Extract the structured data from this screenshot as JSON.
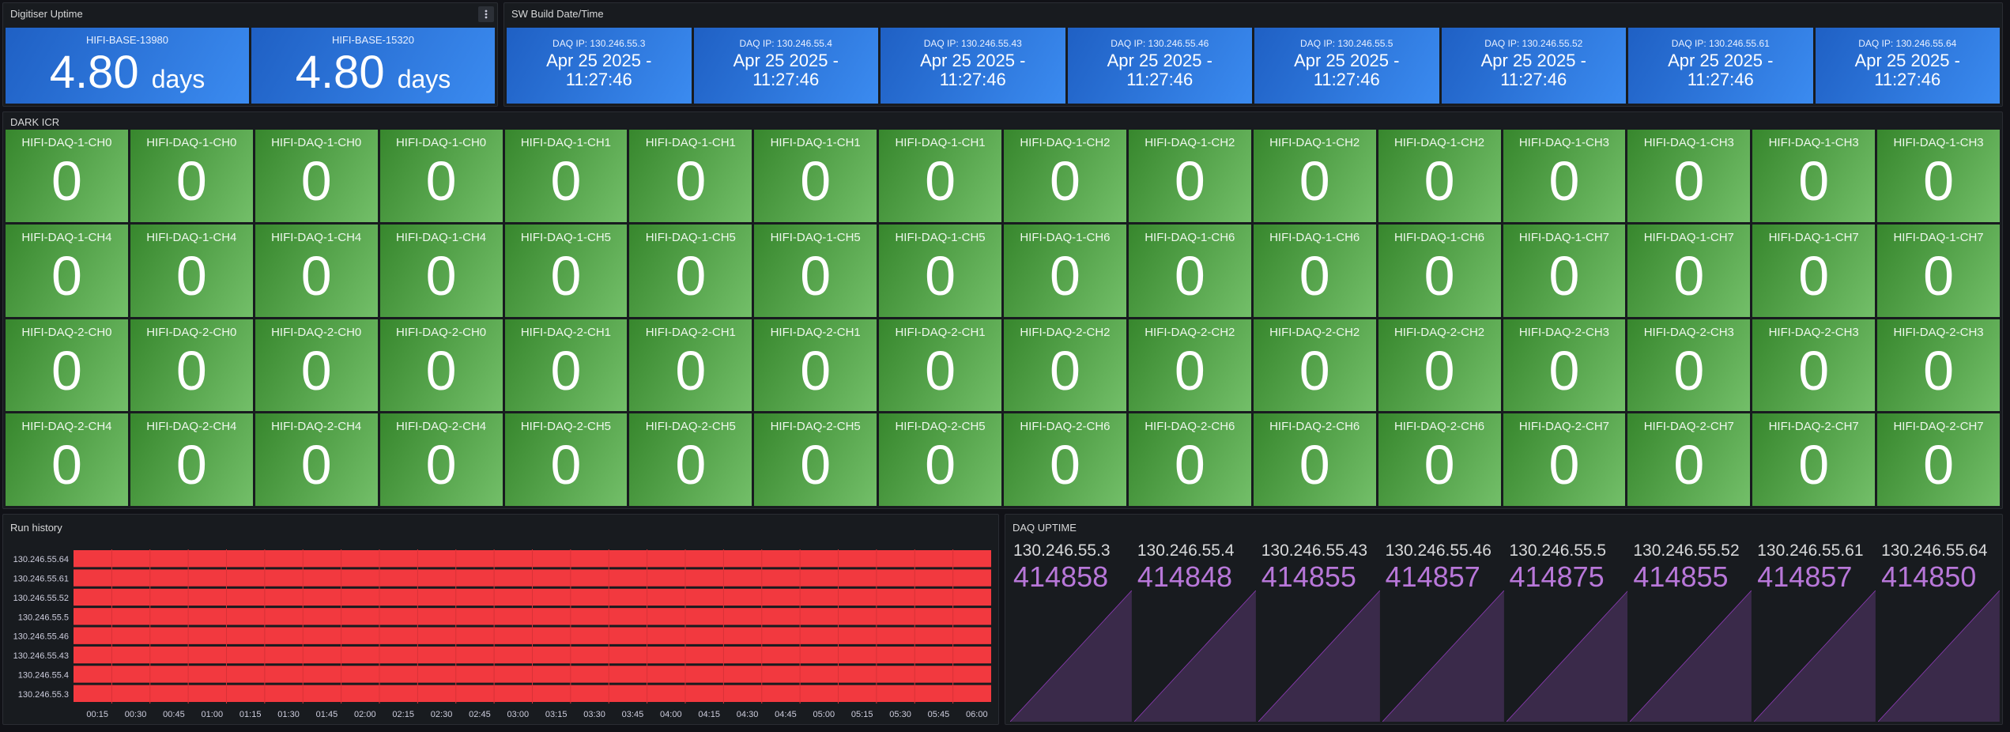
{
  "colors": {
    "background": "#111217",
    "panel": "#181b1f",
    "blue_start": "#1f60c4",
    "blue_end": "#3b8bf0",
    "green_start": "#37872d",
    "green_end": "#73bf69",
    "red_bar": "#f2393f",
    "purple_text": "#b877d9",
    "purple_fill": "#3a2a4a"
  },
  "digitiser_uptime": {
    "title": "Digitiser Uptime",
    "menu_icon": "kebab-menu-icon",
    "tiles": [
      {
        "label": "HIFI-BASE-13980",
        "value": "4.80",
        "unit": "days"
      },
      {
        "label": "HIFI-BASE-15320",
        "value": "4.80",
        "unit": "days"
      }
    ]
  },
  "sw_build": {
    "title": "SW Build Date/Time",
    "tiles": [
      {
        "label": "DAQ IP: 130.246.55.3",
        "line1": "Apr 25 2025 -",
        "line2": "11:27:46"
      },
      {
        "label": "DAQ IP: 130.246.55.4",
        "line1": "Apr 25 2025 -",
        "line2": "11:27:46"
      },
      {
        "label": "DAQ IP: 130.246.55.43",
        "line1": "Apr 25 2025 -",
        "line2": "11:27:46"
      },
      {
        "label": "DAQ IP: 130.246.55.46",
        "line1": "Apr 25 2025 -",
        "line2": "11:27:46"
      },
      {
        "label": "DAQ IP: 130.246.55.5",
        "line1": "Apr 25 2025 -",
        "line2": "11:27:46"
      },
      {
        "label": "DAQ IP: 130.246.55.52",
        "line1": "Apr 25 2025 -",
        "line2": "11:27:46"
      },
      {
        "label": "DAQ IP: 130.246.55.61",
        "line1": "Apr 25 2025 -",
        "line2": "11:27:46"
      },
      {
        "label": "DAQ IP: 130.246.55.64",
        "line1": "Apr 25 2025 -",
        "line2": "11:27:46"
      }
    ]
  },
  "dark_icr": {
    "title": "DARK ICR",
    "tiles": [
      {
        "label": "HIFI-DAQ-1-CH0",
        "value": "0"
      },
      {
        "label": "HIFI-DAQ-1-CH0",
        "value": "0"
      },
      {
        "label": "HIFI-DAQ-1-CH0",
        "value": "0"
      },
      {
        "label": "HIFI-DAQ-1-CH0",
        "value": "0"
      },
      {
        "label": "HIFI-DAQ-1-CH1",
        "value": "0"
      },
      {
        "label": "HIFI-DAQ-1-CH1",
        "value": "0"
      },
      {
        "label": "HIFI-DAQ-1-CH1",
        "value": "0"
      },
      {
        "label": "HIFI-DAQ-1-CH1",
        "value": "0"
      },
      {
        "label": "HIFI-DAQ-1-CH2",
        "value": "0"
      },
      {
        "label": "HIFI-DAQ-1-CH2",
        "value": "0"
      },
      {
        "label": "HIFI-DAQ-1-CH2",
        "value": "0"
      },
      {
        "label": "HIFI-DAQ-1-CH2",
        "value": "0"
      },
      {
        "label": "HIFI-DAQ-1-CH3",
        "value": "0"
      },
      {
        "label": "HIFI-DAQ-1-CH3",
        "value": "0"
      },
      {
        "label": "HIFI-DAQ-1-CH3",
        "value": "0"
      },
      {
        "label": "HIFI-DAQ-1-CH3",
        "value": "0"
      },
      {
        "label": "HIFI-DAQ-1-CH4",
        "value": "0"
      },
      {
        "label": "HIFI-DAQ-1-CH4",
        "value": "0"
      },
      {
        "label": "HIFI-DAQ-1-CH4",
        "value": "0"
      },
      {
        "label": "HIFI-DAQ-1-CH4",
        "value": "0"
      },
      {
        "label": "HIFI-DAQ-1-CH5",
        "value": "0"
      },
      {
        "label": "HIFI-DAQ-1-CH5",
        "value": "0"
      },
      {
        "label": "HIFI-DAQ-1-CH5",
        "value": "0"
      },
      {
        "label": "HIFI-DAQ-1-CH5",
        "value": "0"
      },
      {
        "label": "HIFI-DAQ-1-CH6",
        "value": "0"
      },
      {
        "label": "HIFI-DAQ-1-CH6",
        "value": "0"
      },
      {
        "label": "HIFI-DAQ-1-CH6",
        "value": "0"
      },
      {
        "label": "HIFI-DAQ-1-CH6",
        "value": "0"
      },
      {
        "label": "HIFI-DAQ-1-CH7",
        "value": "0"
      },
      {
        "label": "HIFI-DAQ-1-CH7",
        "value": "0"
      },
      {
        "label": "HIFI-DAQ-1-CH7",
        "value": "0"
      },
      {
        "label": "HIFI-DAQ-1-CH7",
        "value": "0"
      },
      {
        "label": "HIFI-DAQ-2-CH0",
        "value": "0"
      },
      {
        "label": "HIFI-DAQ-2-CH0",
        "value": "0"
      },
      {
        "label": "HIFI-DAQ-2-CH0",
        "value": "0"
      },
      {
        "label": "HIFI-DAQ-2-CH0",
        "value": "0"
      },
      {
        "label": "HIFI-DAQ-2-CH1",
        "value": "0"
      },
      {
        "label": "HIFI-DAQ-2-CH1",
        "value": "0"
      },
      {
        "label": "HIFI-DAQ-2-CH1",
        "value": "0"
      },
      {
        "label": "HIFI-DAQ-2-CH1",
        "value": "0"
      },
      {
        "label": "HIFI-DAQ-2-CH2",
        "value": "0"
      },
      {
        "label": "HIFI-DAQ-2-CH2",
        "value": "0"
      },
      {
        "label": "HIFI-DAQ-2-CH2",
        "value": "0"
      },
      {
        "label": "HIFI-DAQ-2-CH2",
        "value": "0"
      },
      {
        "label": "HIFI-DAQ-2-CH3",
        "value": "0"
      },
      {
        "label": "HIFI-DAQ-2-CH3",
        "value": "0"
      },
      {
        "label": "HIFI-DAQ-2-CH3",
        "value": "0"
      },
      {
        "label": "HIFI-DAQ-2-CH3",
        "value": "0"
      },
      {
        "label": "HIFI-DAQ-2-CH4",
        "value": "0"
      },
      {
        "label": "HIFI-DAQ-2-CH4",
        "value": "0"
      },
      {
        "label": "HIFI-DAQ-2-CH4",
        "value": "0"
      },
      {
        "label": "HIFI-DAQ-2-CH4",
        "value": "0"
      },
      {
        "label": "HIFI-DAQ-2-CH5",
        "value": "0"
      },
      {
        "label": "HIFI-DAQ-2-CH5",
        "value": "0"
      },
      {
        "label": "HIFI-DAQ-2-CH5",
        "value": "0"
      },
      {
        "label": "HIFI-DAQ-2-CH5",
        "value": "0"
      },
      {
        "label": "HIFI-DAQ-2-CH6",
        "value": "0"
      },
      {
        "label": "HIFI-DAQ-2-CH6",
        "value": "0"
      },
      {
        "label": "HIFI-DAQ-2-CH6",
        "value": "0"
      },
      {
        "label": "HIFI-DAQ-2-CH6",
        "value": "0"
      },
      {
        "label": "HIFI-DAQ-2-CH7",
        "value": "0"
      },
      {
        "label": "HIFI-DAQ-2-CH7",
        "value": "0"
      },
      {
        "label": "HIFI-DAQ-2-CH7",
        "value": "0"
      },
      {
        "label": "HIFI-DAQ-2-CH7",
        "value": "0"
      }
    ]
  },
  "run_history": {
    "title": "Run history",
    "rows": [
      "130.246.55.64",
      "130.246.55.61",
      "130.246.55.52",
      "130.246.55.5",
      "130.246.55.46",
      "130.246.55.43",
      "130.246.55.4",
      "130.246.55.3"
    ],
    "ticks": [
      "00:15",
      "00:30",
      "00:45",
      "01:00",
      "01:15",
      "01:30",
      "01:45",
      "02:00",
      "02:15",
      "02:30",
      "02:45",
      "03:00",
      "03:15",
      "03:30",
      "03:45",
      "04:00",
      "04:15",
      "04:30",
      "04:45",
      "05:00",
      "05:15",
      "05:30",
      "05:45",
      "06:00"
    ],
    "bar_color": "#f2393f"
  },
  "daq_uptime": {
    "title": "DAQ UPTIME",
    "items": [
      {
        "label": "130.246.55.3",
        "value": "414858"
      },
      {
        "label": "130.246.55.4",
        "value": "414848"
      },
      {
        "label": "130.246.55.43",
        "value": "414855"
      },
      {
        "label": "130.246.55.46",
        "value": "414857"
      },
      {
        "label": "130.246.55.5",
        "value": "414875"
      },
      {
        "label": "130.246.55.52",
        "value": "414855"
      },
      {
        "label": "130.246.55.61",
        "value": "414857"
      },
      {
        "label": "130.246.55.64",
        "value": "414850"
      }
    ]
  }
}
